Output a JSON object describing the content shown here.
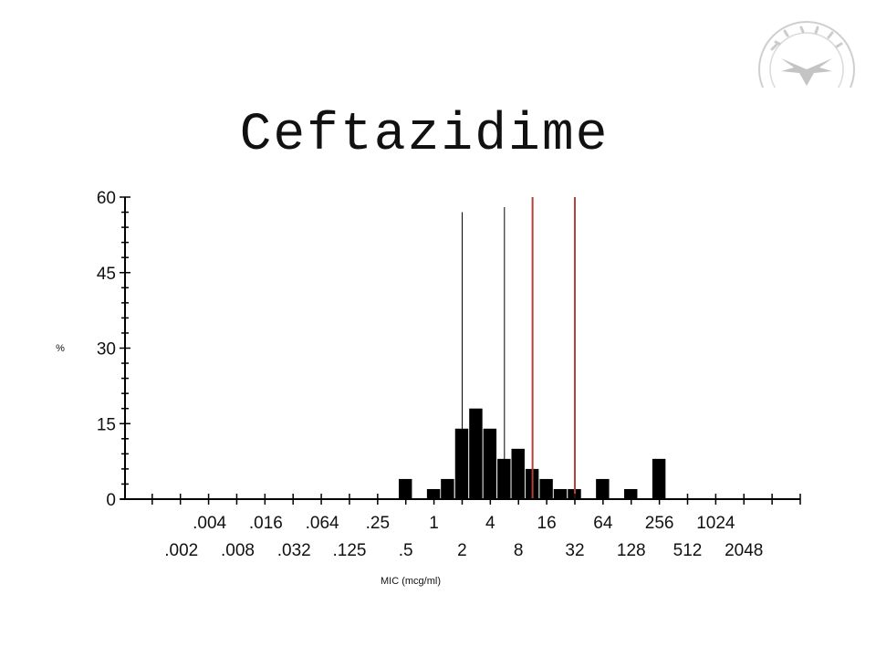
{
  "title": "Ceftazidime",
  "colors": {
    "bars": "#000000",
    "axis": "#000000",
    "breakpoint_black": "#000000",
    "breakpoint_red": "#b5403a",
    "seal": "#c9c9c9"
  },
  "chart_data": {
    "type": "bar",
    "title": "Ceftazidime",
    "xlabel": "MIC (mcg/ml)",
    "ylabel": "%",
    "ylim": [
      0,
      60
    ],
    "yticks": [
      0,
      15,
      30,
      45,
      60
    ],
    "x_scale": "log2",
    "xlim": [
      0.0005,
      8192
    ],
    "xticks_upper": [
      ".004",
      ".016",
      ".064",
      ".25",
      "1",
      "4",
      "16",
      "64",
      "256",
      "1024"
    ],
    "xticks_upper_values": [
      0.004,
      0.016,
      0.064,
      0.25,
      1,
      4,
      16,
      64,
      256,
      1024
    ],
    "xticks_lower": [
      ".002",
      ".008",
      ".032",
      ".125",
      ".5",
      "2",
      "8",
      "32",
      "128",
      "512",
      "2048"
    ],
    "xticks_lower_values": [
      0.002,
      0.008,
      0.032,
      0.125,
      0.5,
      2,
      8,
      32,
      128,
      512,
      2048
    ],
    "bars": [
      {
        "mic": 0.5,
        "percent": 4
      },
      {
        "mic": 1,
        "percent": 2
      },
      {
        "mic": 1.41,
        "percent": 4
      },
      {
        "mic": 2,
        "percent": 14
      },
      {
        "mic": 2.83,
        "percent": 18
      },
      {
        "mic": 4,
        "percent": 14
      },
      {
        "mic": 5.66,
        "percent": 8
      },
      {
        "mic": 8,
        "percent": 10
      },
      {
        "mic": 11.3,
        "percent": 6
      },
      {
        "mic": 16,
        "percent": 4
      },
      {
        "mic": 22.6,
        "percent": 2
      },
      {
        "mic": 32,
        "percent": 2
      },
      {
        "mic": 64,
        "percent": 4
      },
      {
        "mic": 128,
        "percent": 2
      },
      {
        "mic": 256,
        "percent": 8
      }
    ],
    "reference_lines": [
      {
        "mic": 2,
        "color": "black",
        "top_percent": 57
      },
      {
        "mic": 5.66,
        "color": "black",
        "top_percent": 58
      },
      {
        "mic": 11.3,
        "color": "red",
        "top_percent": 60
      },
      {
        "mic": 32,
        "color": "red",
        "top_percent": 60
      }
    ]
  }
}
